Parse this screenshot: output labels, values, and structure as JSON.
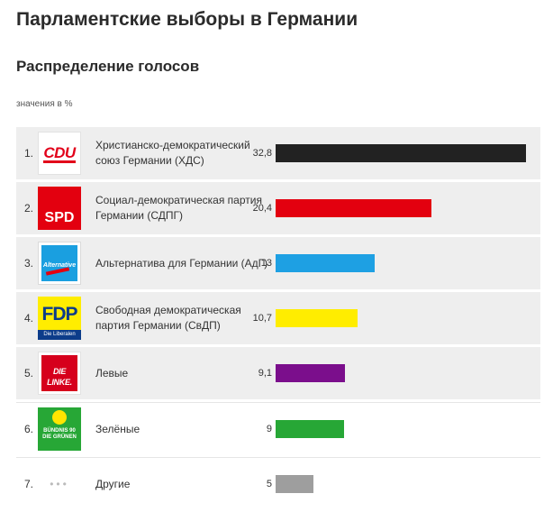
{
  "title": "Парламентские выборы в Германии",
  "subtitle": "Распределение голосов",
  "units": "значения в %",
  "logos": {
    "cdu": "CDU",
    "spd": "SPD",
    "afd": "Alternative",
    "fdp": "FDP",
    "fdp_band": "Die Liberalen",
    "linke": "DIE LINKE.",
    "gruene": "BÜNDNIS 90 DIE GRÜNEN",
    "other": "•••"
  },
  "chart_data": {
    "type": "bar",
    "orientation": "horizontal",
    "title": "Парламентские выборы в Германии",
    "subtitle": "Распределение голосов",
    "unit_label": "значения в %",
    "categories": [
      "Христианско-демократический союз Германии (ХДС)",
      "Социал-демократическая партия Германии (СДПГ)",
      "Альтернатива для Германии (АдГ)",
      "Свободная демократическая партия Германии (СвДП)",
      "Левые",
      "Зелёные",
      "Другие"
    ],
    "ranks": [
      "1.",
      "2.",
      "3.",
      "4.",
      "5.",
      "6.",
      "7."
    ],
    "values": [
      32.8,
      20.4,
      13,
      10.7,
      9.1,
      9,
      5
    ],
    "value_labels": [
      "32,8",
      "20,4",
      "13",
      "10,7",
      "9,1",
      "9",
      "5"
    ],
    "colors": [
      "#222222",
      "#e3000f",
      "#1ea0e3",
      "#ffed00",
      "#7b0e8c",
      "#27a736",
      "#9e9e9e"
    ],
    "logo_icons": [
      "cdu-logo-icon",
      "spd-logo-icon",
      "afd-logo-icon",
      "fdp-logo-icon",
      "linke-logo-icon",
      "gruene-logo-icon",
      "dots-icon"
    ],
    "xlim": [
      0,
      32.8
    ]
  }
}
